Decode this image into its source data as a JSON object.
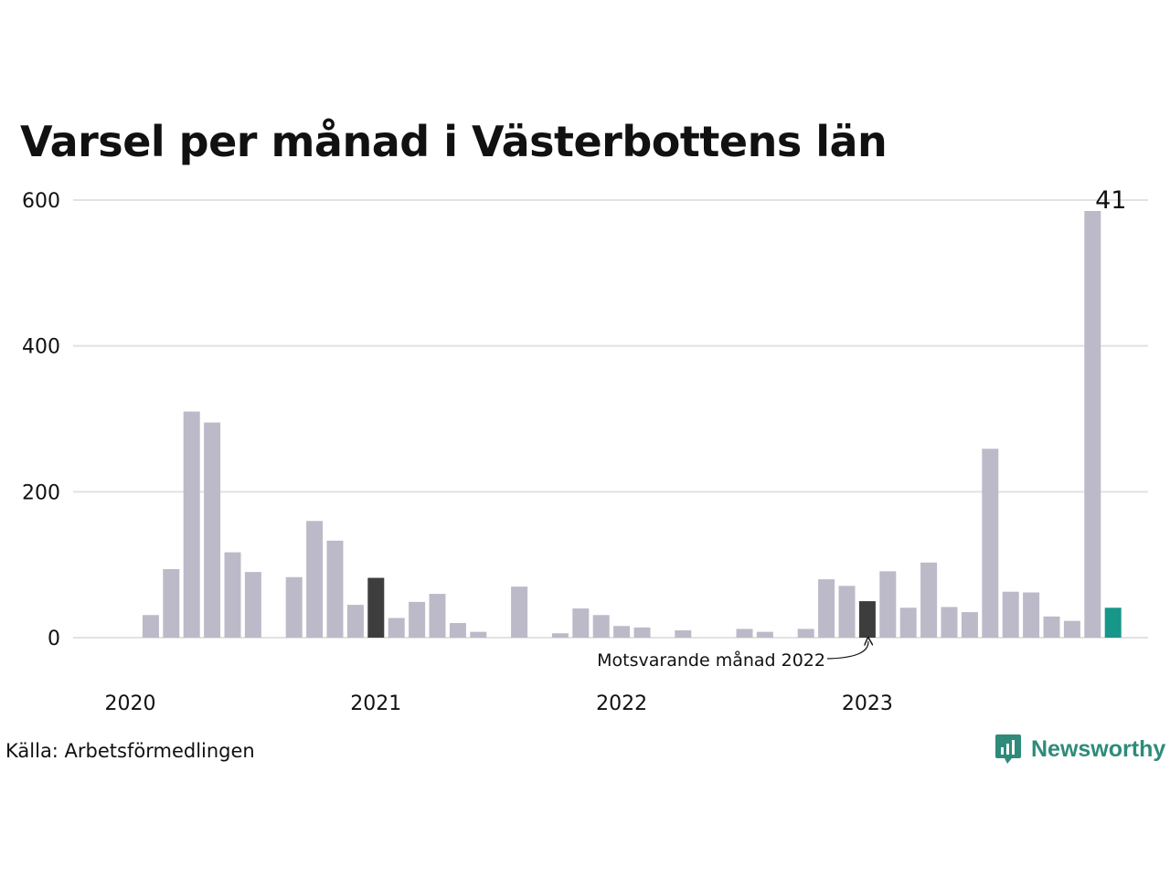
{
  "title": "Varsel per månad i Västerbottens län",
  "source": "Källa: Arbetsförmedlingen",
  "brand": {
    "name": "Newsworthy",
    "icon": "newsworthy-logo-icon"
  },
  "colors": {
    "default": "#bcbac8",
    "comparison": "#3d3d3d",
    "latest": "#17968a",
    "grid": "#e2e2e2"
  },
  "chart_data": {
    "type": "bar",
    "title": "Varsel per månad i Västerbottens län",
    "xlabel": "",
    "ylabel": "",
    "ylim": [
      0,
      600
    ],
    "yticks": [
      0,
      200,
      400,
      600
    ],
    "x_tick_labels": [
      "2020",
      "2021",
      "2022",
      "2023"
    ],
    "grid": true,
    "values": [
      null,
      31,
      94,
      310,
      295,
      117,
      90,
      null,
      83,
      160,
      133,
      45,
      82,
      27,
      49,
      60,
      20,
      8,
      null,
      70,
      null,
      6,
      40,
      31,
      16,
      14,
      null,
      10,
      null,
      null,
      12,
      8,
      null,
      12,
      80,
      71,
      50,
      91,
      41,
      103,
      42,
      35,
      259,
      63,
      62,
      29,
      23,
      585,
      41
    ],
    "highlight": {
      "comparison_indices": [
        12,
        36
      ],
      "latest_index": 48
    },
    "latest_value_label": "41",
    "annotation": {
      "text": "Motsvarande månad 2022",
      "target_index": 36
    }
  }
}
